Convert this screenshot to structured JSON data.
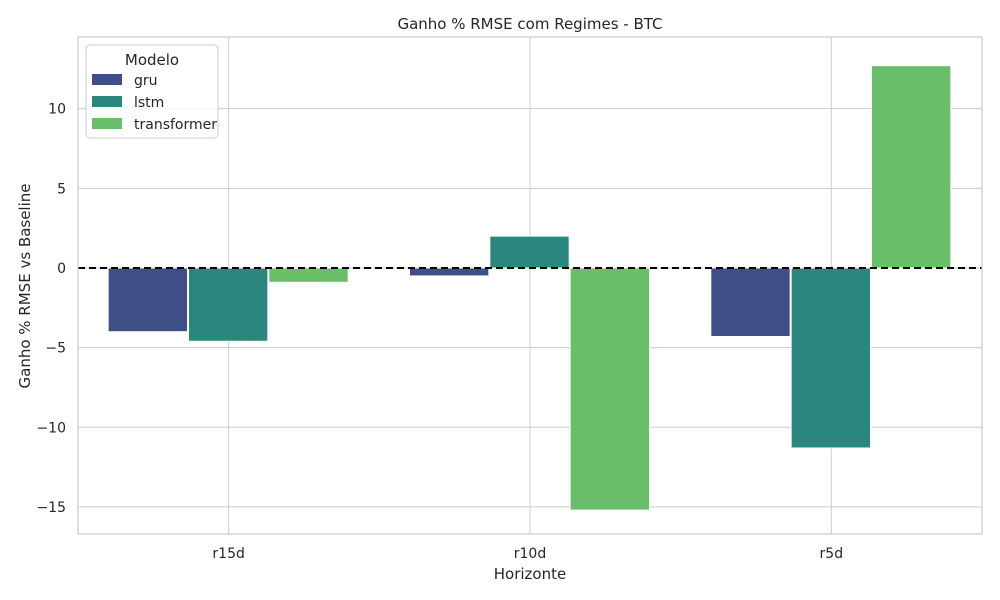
{
  "chart_data": {
    "type": "bar",
    "title": "Ganho % RMSE com Regimes - BTC",
    "xlabel": "Horizonte",
    "ylabel": "Ganho % RMSE vs Baseline",
    "categories": [
      "r15d",
      "r10d",
      "r5d"
    ],
    "series": [
      {
        "name": "gru",
        "color": "#3e4f88",
        "values": [
          -4.0,
          -0.5,
          -4.3
        ]
      },
      {
        "name": "lstm",
        "color": "#2b867e",
        "values": [
          -4.6,
          2.0,
          -11.3
        ]
      },
      {
        "name": "transformer",
        "color": "#69be6a",
        "values": [
          -0.9,
          -15.2,
          12.7
        ]
      }
    ],
    "ylim": [
      -16.7,
      14.5
    ],
    "yticks": [
      -15,
      -10,
      -5,
      0,
      5,
      10
    ],
    "ytick_labels": [
      "−15",
      "−10",
      "−5",
      "0",
      "5",
      "10"
    ],
    "reference_line": {
      "y": 0,
      "style": "dashed",
      "color": "#000000"
    },
    "legend": {
      "title": "Modelo",
      "position": "top-left"
    },
    "grid": true
  }
}
